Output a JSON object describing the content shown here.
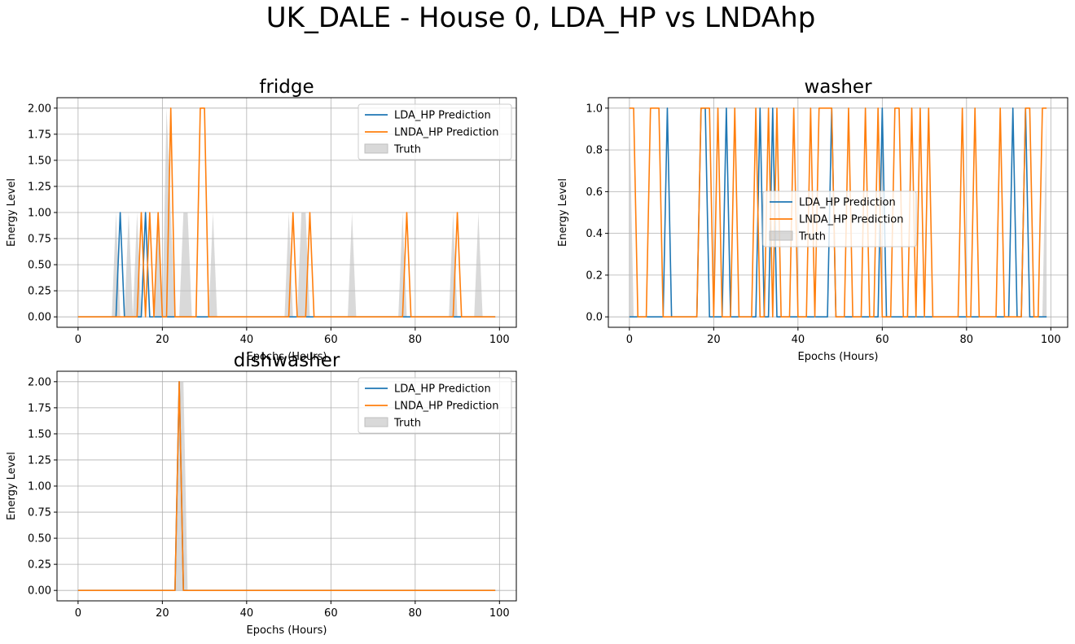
{
  "suptitle": "UK_DALE - House 0, LDA_HP vs LNDAhp",
  "colors": {
    "lda": "#1f77b4",
    "lnda": "#ff7f0e",
    "truth_fill": "#bfbfbf",
    "grid": "#b0b0b0"
  },
  "chart_data": [
    {
      "type": "line",
      "title": "fridge",
      "xlabel": "Epochs (Hours)",
      "ylabel": "Energy Level",
      "xlim": [
        -5,
        104
      ],
      "ylim": [
        -0.1,
        2.1
      ],
      "xticks": [
        0,
        20,
        40,
        60,
        80,
        100
      ],
      "yticks": [
        0.0,
        0.25,
        0.5,
        0.75,
        1.0,
        1.25,
        1.5,
        1.75,
        2.0
      ],
      "ytick_labels": [
        "0.00",
        "0.25",
        "0.50",
        "0.75",
        "1.00",
        "1.25",
        "1.50",
        "1.75",
        "2.00"
      ],
      "grid": true,
      "legend_position": "top-right",
      "series": [
        {
          "name": "LDA_HP Prediction",
          "kind": "line",
          "color": "#1f77b4",
          "on": [
            [
              10,
              1
            ],
            [
              16,
              1
            ]
          ]
        },
        {
          "name": "LNDA_HP Prediction",
          "kind": "line",
          "color": "#ff7f0e",
          "on": [
            [
              15,
              1
            ],
            [
              17,
              1
            ],
            [
              19,
              1
            ],
            [
              22,
              2
            ],
            [
              29,
              2
            ],
            [
              30,
              2
            ],
            [
              51,
              1
            ],
            [
              55,
              1
            ],
            [
              78,
              1
            ],
            [
              90,
              1
            ]
          ]
        },
        {
          "name": "Truth",
          "kind": "fill",
          "color": "#bfbfbf",
          "on": [
            [
              9,
              1
            ],
            [
              12,
              1
            ],
            [
              14,
              1
            ],
            [
              19,
              1
            ],
            [
              21,
              2
            ],
            [
              22,
              1
            ],
            [
              25,
              1
            ],
            [
              26,
              1
            ],
            [
              32,
              1
            ],
            [
              50,
              1
            ],
            [
              53,
              1
            ],
            [
              54,
              1
            ],
            [
              65,
              1
            ],
            [
              77,
              1
            ],
            [
              89,
              1
            ],
            [
              95,
              1
            ]
          ]
        }
      ]
    },
    {
      "type": "line",
      "title": "washer",
      "xlabel": "Epochs (Hours)",
      "ylabel": "Energy Level",
      "xlim": [
        -5,
        104
      ],
      "ylim": [
        -0.05,
        1.05
      ],
      "xticks": [
        0,
        20,
        40,
        60,
        80,
        100
      ],
      "yticks": [
        0.0,
        0.2,
        0.4,
        0.6,
        0.8,
        1.0
      ],
      "ytick_labels": [
        "0.0",
        "0.2",
        "0.4",
        "0.6",
        "0.8",
        "1.0"
      ],
      "grid": true,
      "legend_position": "center",
      "series": [
        {
          "name": "LDA_HP Prediction",
          "kind": "line",
          "color": "#1f77b4",
          "on": [
            [
              9,
              1
            ],
            [
              17,
              1
            ],
            [
              18,
              1
            ],
            [
              23,
              1
            ],
            [
              31,
              1
            ],
            [
              34,
              1
            ],
            [
              48,
              1
            ],
            [
              60,
              1
            ],
            [
              91,
              1
            ],
            [
              94,
              1
            ]
          ]
        },
        {
          "name": "LNDA_HP Prediction",
          "kind": "line",
          "color": "#ff7f0e",
          "on": [
            [
              0,
              1
            ],
            [
              1,
              1
            ],
            [
              5,
              1
            ],
            [
              6,
              1
            ],
            [
              7,
              1
            ],
            [
              17,
              1
            ],
            [
              18,
              1
            ],
            [
              19,
              1
            ],
            [
              21,
              1
            ],
            [
              25,
              1
            ],
            [
              30,
              1
            ],
            [
              33,
              1
            ],
            [
              35,
              1
            ],
            [
              39,
              1
            ],
            [
              43,
              1
            ],
            [
              45,
              1
            ],
            [
              46,
              1
            ],
            [
              47,
              1
            ],
            [
              48,
              1
            ],
            [
              52,
              1
            ],
            [
              56,
              1
            ],
            [
              59,
              1
            ],
            [
              63,
              1
            ],
            [
              64,
              1
            ],
            [
              67,
              1
            ],
            [
              69,
              1
            ],
            [
              71,
              1
            ],
            [
              79,
              1
            ],
            [
              82,
              1
            ],
            [
              88,
              1
            ],
            [
              94,
              1
            ],
            [
              95,
              1
            ],
            [
              98,
              1
            ],
            [
              99,
              1
            ]
          ]
        },
        {
          "name": "Truth",
          "kind": "fill",
          "color": "#bfbfbf",
          "on": [
            [
              0,
              1
            ],
            [
              99,
              1
            ]
          ]
        }
      ]
    },
    {
      "type": "line",
      "title": "dishwasher",
      "xlabel": "Epochs (Hours)",
      "ylabel": "Energy Level",
      "xlim": [
        -5,
        104
      ],
      "ylim": [
        -0.1,
        2.1
      ],
      "xticks": [
        0,
        20,
        40,
        60,
        80,
        100
      ],
      "yticks": [
        0.0,
        0.25,
        0.5,
        0.75,
        1.0,
        1.25,
        1.5,
        1.75,
        2.0
      ],
      "ytick_labels": [
        "0.00",
        "0.25",
        "0.50",
        "0.75",
        "1.00",
        "1.25",
        "1.50",
        "1.75",
        "2.00"
      ],
      "grid": true,
      "legend_position": "top-right",
      "series": [
        {
          "name": "LDA_HP Prediction",
          "kind": "line",
          "color": "#1f77b4",
          "on": [
            [
              24,
              2
            ]
          ]
        },
        {
          "name": "LNDA_HP Prediction",
          "kind": "line",
          "color": "#ff7f0e",
          "on": [
            [
              24,
              2
            ]
          ]
        },
        {
          "name": "Truth",
          "kind": "fill",
          "color": "#bfbfbf",
          "on": [
            [
              24,
              2
            ],
            [
              25,
              2
            ]
          ]
        }
      ]
    }
  ]
}
